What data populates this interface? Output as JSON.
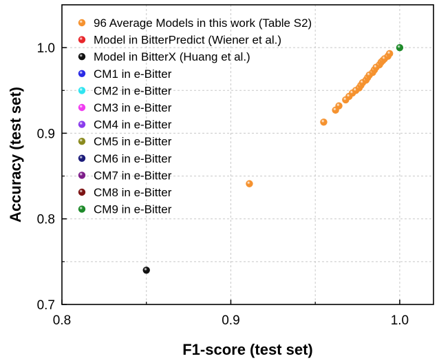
{
  "chart_data": {
    "type": "scatter",
    "title": "",
    "xlabel": "F1-score (test set)",
    "ylabel": "Accuracy (test set)",
    "xlim": [
      0.8,
      1.02
    ],
    "ylim": [
      0.7,
      1.05
    ],
    "xticks": [
      0.8,
      0.9,
      1.0
    ],
    "xtick_labels": [
      "0.8",
      "0.9",
      "1.0"
    ],
    "yticks": [
      0.7,
      0.8,
      0.9,
      1.0
    ],
    "ytick_labels": [
      "0.7",
      "0.8",
      "0.9",
      "1.0"
    ],
    "grid": true,
    "legend_position": "top-left",
    "series": [
      {
        "name": "96 Average Models in this work (Table S2)",
        "color": "#f5922f",
        "x": [
          0.911,
          0.955,
          0.962,
          0.964,
          0.968,
          0.97,
          0.972,
          0.974,
          0.976,
          0.977,
          0.978,
          0.98,
          0.981,
          0.982,
          0.984,
          0.985,
          0.986,
          0.988,
          0.989,
          0.99,
          0.991,
          0.993,
          0.994
        ],
        "y": [
          0.841,
          0.913,
          0.927,
          0.932,
          0.939,
          0.943,
          0.947,
          0.95,
          0.953,
          0.956,
          0.959,
          0.962,
          0.965,
          0.968,
          0.971,
          0.974,
          0.977,
          0.98,
          0.983,
          0.985,
          0.987,
          0.99,
          0.993
        ]
      },
      {
        "name": "Model in BitterPredict (Wiener et al.)",
        "color": "#e8262b",
        "x": [],
        "y": []
      },
      {
        "name": "Model in BitterX (Huang et al.)",
        "color": "#111111",
        "x": [
          0.85
        ],
        "y": [
          0.74
        ]
      },
      {
        "name": "CM1 in e-Bitter",
        "color": "#2a2ae6",
        "x": [],
        "y": []
      },
      {
        "name": "CM2 in e-Bitter",
        "color": "#2fe4f0",
        "x": [],
        "y": []
      },
      {
        "name": "CM3 in e-Bitter",
        "color": "#f03cf0",
        "x": [],
        "y": []
      },
      {
        "name": "CM4 in e-Bitter",
        "color": "#8a3cec",
        "x": [],
        "y": []
      },
      {
        "name": "CM5 in e-Bitter",
        "color": "#8a8a1e",
        "x": [],
        "y": []
      },
      {
        "name": "CM6 in e-Bitter",
        "color": "#1c1c7a",
        "x": [],
        "y": []
      },
      {
        "name": "CM7 in e-Bitter",
        "color": "#7e1e8a",
        "x": [],
        "y": []
      },
      {
        "name": "CM8 in e-Bitter",
        "color": "#7c1414",
        "x": [],
        "y": []
      },
      {
        "name": "CM9 in e-Bitter",
        "color": "#1e8a2a",
        "x": [
          1.0
        ],
        "y": [
          1.0
        ]
      }
    ]
  }
}
